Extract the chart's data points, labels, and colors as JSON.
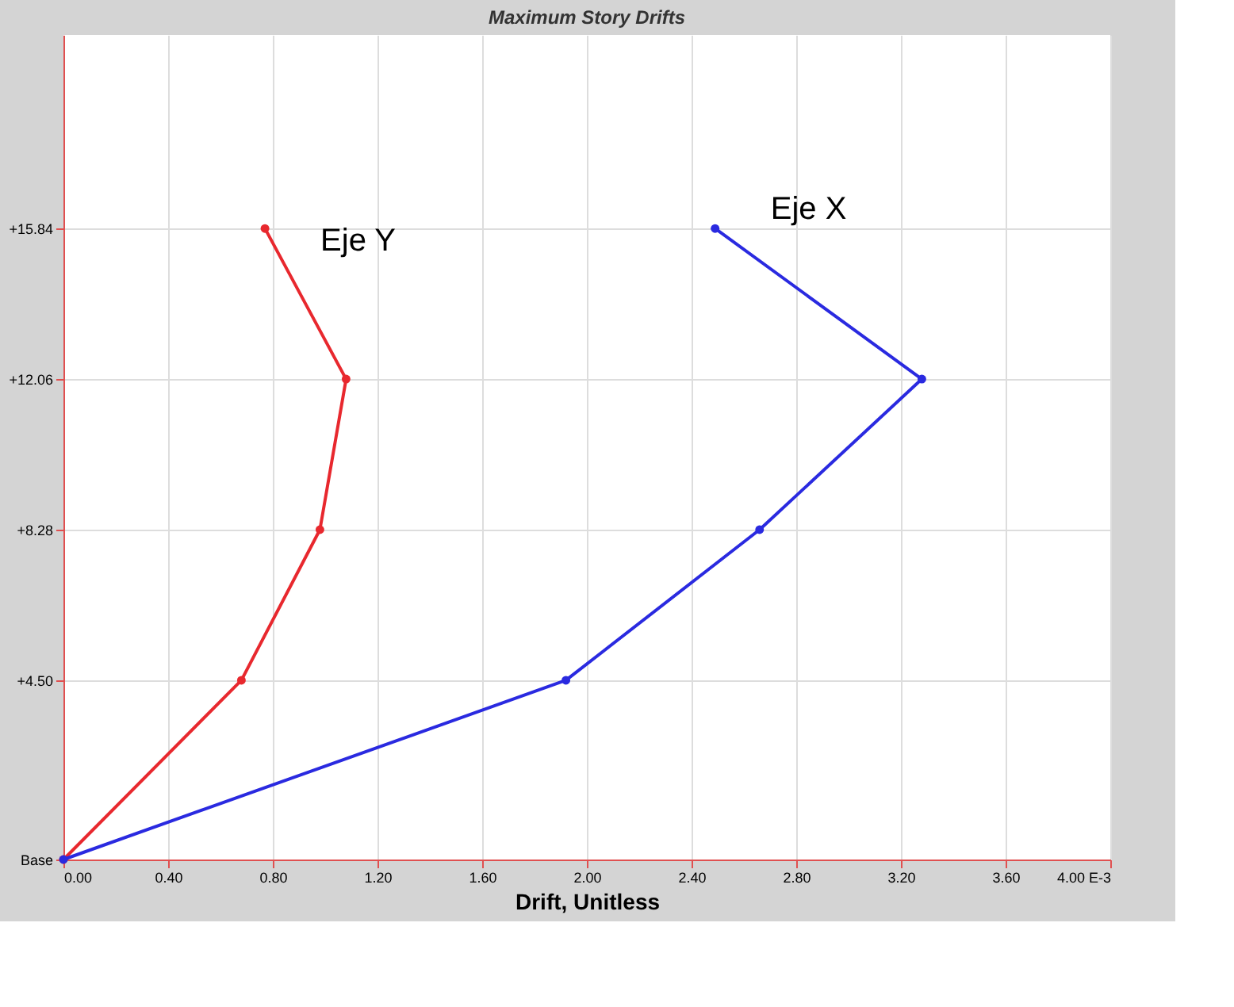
{
  "chart_data": {
    "type": "line",
    "title": "Maximum Story Drifts",
    "xlabel": "Drift, Unitless",
    "series": [
      {
        "name": "Eje Y",
        "color": "#e8282e",
        "x": [
          0.0,
          0.68,
          0.98,
          1.08,
          0.77
        ],
        "values": [
          0,
          4.5,
          8.28,
          12.06,
          15.84
        ]
      },
      {
        "name": "Eje X",
        "color": "#2a2ae0",
        "x": [
          0.0,
          1.92,
          2.66,
          3.28,
          2.49
        ],
        "values": [
          0,
          4.5,
          8.28,
          12.06,
          15.84
        ]
      }
    ],
    "xlim": [
      0,
      4
    ],
    "xticks": [
      {
        "value": 0,
        "label": "0.00"
      },
      {
        "value": 0.4,
        "label": "0.40"
      },
      {
        "value": 0.8,
        "label": "0.80"
      },
      {
        "value": 1.2,
        "label": "1.20"
      },
      {
        "value": 1.6,
        "label": "1.60"
      },
      {
        "value": 2.0,
        "label": "2.00"
      },
      {
        "value": 2.4,
        "label": "2.40"
      },
      {
        "value": 2.8,
        "label": "2.80"
      },
      {
        "value": 3.2,
        "label": "3.20"
      },
      {
        "value": 3.6,
        "label": "3.60"
      },
      {
        "value": 4.0,
        "label": "4.00 E-3"
      }
    ],
    "ylim": [
      0,
      20.7
    ],
    "yticks": [
      {
        "value": 0,
        "label": "Base"
      },
      {
        "value": 4.5,
        "label": "+4.50"
      },
      {
        "value": 8.28,
        "label": "+8.28"
      },
      {
        "value": 12.06,
        "label": "+12.06"
      },
      {
        "value": 15.84,
        "label": "+15.84"
      }
    ],
    "grid": true,
    "marker": "circle",
    "line_style": "solid"
  }
}
